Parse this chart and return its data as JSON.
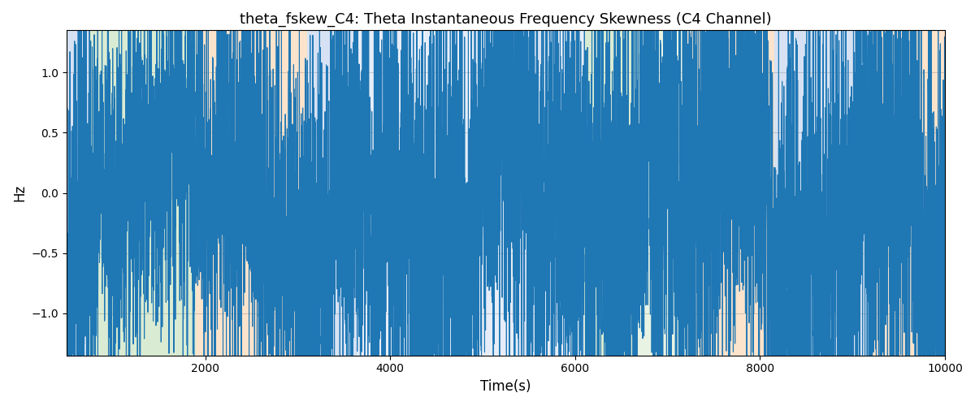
{
  "title": "theta_fskew_C4: Theta Instantaneous Frequency Skewness (C4 Channel)",
  "xlabel": "Time(s)",
  "ylabel": "Hz",
  "xlim": [
    500,
    10000
  ],
  "ylim": [
    -1.35,
    1.35
  ],
  "line_color": "#1f77b4",
  "line_width": 0.8,
  "bg_bands": [
    {
      "xmin": 500,
      "xmax": 750,
      "color": "#aec6e8",
      "alpha": 0.5
    },
    {
      "xmin": 750,
      "xmax": 1900,
      "color": "#b5d9a8",
      "alpha": 0.5
    },
    {
      "xmin": 1900,
      "xmax": 3100,
      "color": "#f9c99a",
      "alpha": 0.5
    },
    {
      "xmin": 3100,
      "xmax": 3650,
      "color": "#aec6e8",
      "alpha": 0.5
    },
    {
      "xmin": 3650,
      "xmax": 5400,
      "color": "#aec6e8",
      "alpha": 0.3
    },
    {
      "xmin": 5400,
      "xmax": 5650,
      "color": "#aec6e8",
      "alpha": 0.5
    },
    {
      "xmin": 5650,
      "xmax": 6100,
      "color": "#aec6e8",
      "alpha": 0.3
    },
    {
      "xmin": 6100,
      "xmax": 6650,
      "color": "#b5d9a8",
      "alpha": 0.5
    },
    {
      "xmin": 6650,
      "xmax": 7200,
      "color": "#b5d9a8",
      "alpha": 0.3
    },
    {
      "xmin": 7200,
      "xmax": 8150,
      "color": "#f9c99a",
      "alpha": 0.5
    },
    {
      "xmin": 8150,
      "xmax": 9200,
      "color": "#aec6e8",
      "alpha": 0.5
    },
    {
      "xmin": 9200,
      "xmax": 10000,
      "color": "#f9c99a",
      "alpha": 0.5
    }
  ],
  "yticks": [
    -1.0,
    -0.5,
    0.0,
    0.5,
    1.0
  ],
  "xticks": [
    2000,
    4000,
    6000,
    8000,
    10000
  ],
  "grid": true,
  "seed": 42,
  "n_points": 8000
}
